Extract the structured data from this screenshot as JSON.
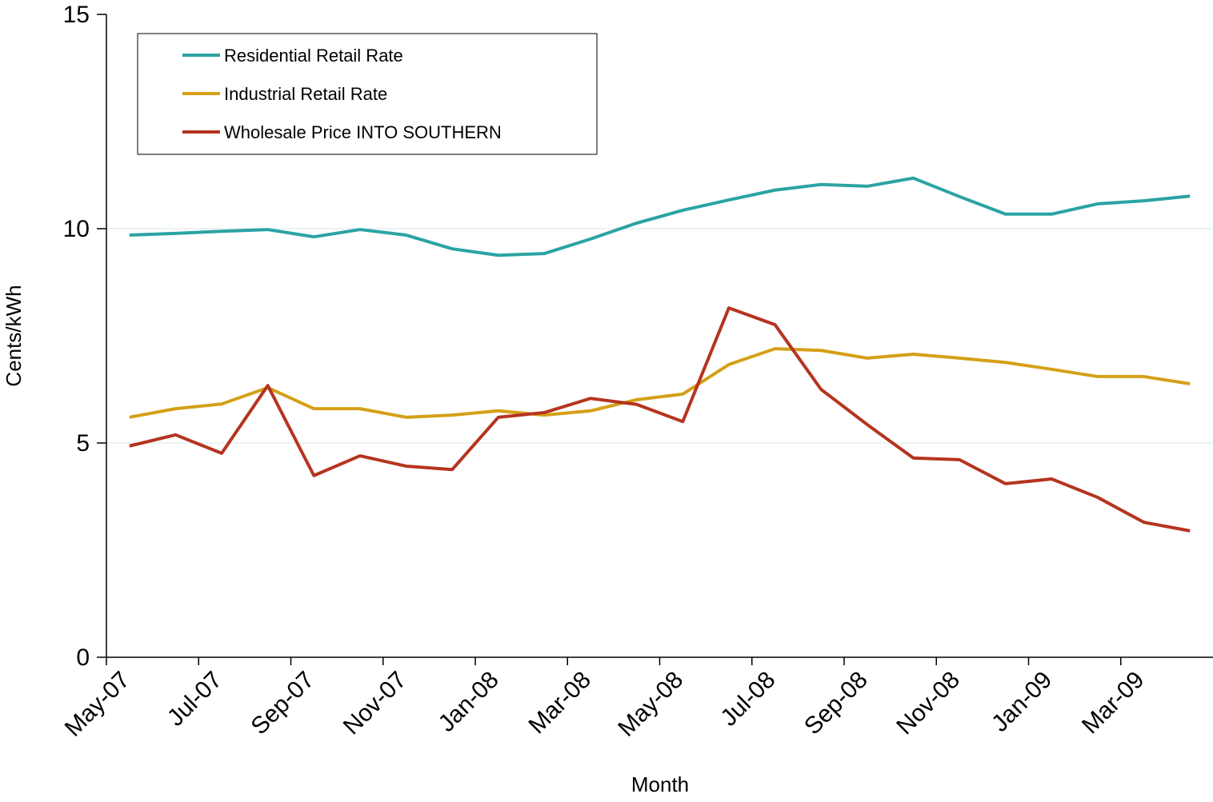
{
  "chart_data": {
    "type": "line",
    "y_label": "Cents/kWh",
    "x_label": "Month",
    "categories": [
      "May-07",
      null,
      "Jul-07",
      null,
      "Sep-07",
      null,
      "Nov-07",
      null,
      "Jan-08",
      null,
      "Mar-08",
      null,
      "May-08",
      null,
      "Jul-08",
      null,
      "Sep-08",
      null,
      "Nov-08",
      null,
      "Jan-09",
      null,
      "Mar-09",
      null
    ],
    "series": [
      {
        "name": "Residential Retail Rate",
        "color": "#2ba3a3",
        "values": [
          9.85,
          9.89,
          9.94,
          9.98,
          9.81,
          9.98,
          9.85,
          9.53,
          9.38,
          9.42,
          9.76,
          10.13,
          10.43,
          10.67,
          10.9,
          11.03,
          10.99,
          11.18,
          10.75,
          10.34,
          10.34,
          10.58,
          10.65,
          10.76
        ]
      },
      {
        "name": "Industrial Retail Rate",
        "color": "#d4a017",
        "values": [
          5.6,
          5.8,
          5.91,
          6.29,
          5.8,
          5.8,
          5.6,
          5.65,
          5.75,
          5.65,
          5.75,
          6.01,
          6.14,
          6.83,
          7.2,
          7.16,
          6.98,
          7.07,
          6.98,
          6.88,
          6.72,
          6.55,
          6.55,
          6.38
        ]
      },
      {
        "name": "Wholesale Price INTO SOUTHERN",
        "color": "#b5341f",
        "values": [
          4.93,
          5.19,
          4.76,
          6.34,
          4.24,
          4.7,
          4.46,
          4.38,
          5.6,
          5.71,
          6.04,
          5.9,
          5.5,
          8.15,
          7.76,
          6.25,
          5.43,
          4.65,
          4.61,
          4.05,
          4.16,
          3.73,
          3.15,
          2.95
        ]
      }
    ],
    "ylim": [
      0,
      15
    ],
    "yticks": [
      0,
      5,
      10,
      15
    ],
    "grid": true,
    "legend": "upper-left"
  }
}
